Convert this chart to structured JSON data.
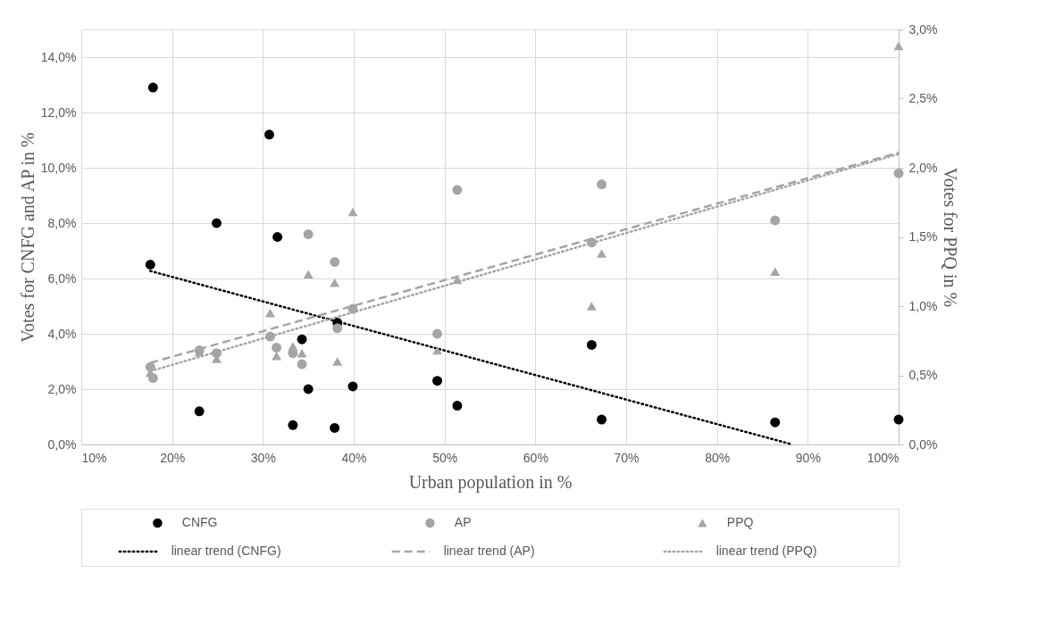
{
  "chart_data": {
    "type": "scatter",
    "xlabel": "Urban population in %",
    "ylabel": "Votes for CNFG and AP in %",
    "y2label": "Votes for PPQ in %",
    "xlim": [
      10,
      100
    ],
    "xticks": [
      {
        "value": 10,
        "label": "10%"
      },
      {
        "value": 20,
        "label": "20%"
      },
      {
        "value": 30,
        "label": "30%"
      },
      {
        "value": 40,
        "label": "40%"
      },
      {
        "value": 50,
        "label": "50%"
      },
      {
        "value": 60,
        "label": "60%"
      },
      {
        "value": 70,
        "label": "70%"
      },
      {
        "value": 80,
        "label": "80%"
      },
      {
        "value": 90,
        "label": "90%"
      },
      {
        "value": 100,
        "label": "100%"
      }
    ],
    "ylim": [
      0,
      15
    ],
    "yticks": [
      {
        "value": 0,
        "label": "0,0%"
      },
      {
        "value": 2,
        "label": "2,0%"
      },
      {
        "value": 4,
        "label": "4,0%"
      },
      {
        "value": 6,
        "label": "6,0%"
      },
      {
        "value": 8,
        "label": "8,0%"
      },
      {
        "value": 10,
        "label": "10,0%"
      },
      {
        "value": 12,
        "label": "12,0%"
      },
      {
        "value": 14,
        "label": "14,0%"
      }
    ],
    "y2lim": [
      0,
      3
    ],
    "y2ticks": [
      {
        "value": 0,
        "label": "0,0%"
      },
      {
        "value": 0.5,
        "label": "0,5%"
      },
      {
        "value": 1,
        "label": "1,0%"
      },
      {
        "value": 1.5,
        "label": "1,5%"
      },
      {
        "value": 2,
        "label": "2,0%"
      },
      {
        "value": 2.5,
        "label": "2,5%"
      },
      {
        "value": 3,
        "label": "3,0%"
      }
    ],
    "grid": true,
    "legend": "bottom",
    "series": [
      {
        "name": "CNFG",
        "marker": "circle",
        "color": "#000000",
        "x": [
          17.9,
          30.7,
          24.9,
          31.6,
          17.6,
          23.0,
          33.3,
          34.3,
          35.0,
          37.9,
          38.2,
          39.9,
          49.2,
          51.4,
          66.2,
          67.3,
          86.4,
          100
        ],
        "values": [
          12.9,
          11.2,
          8.0,
          7.5,
          6.5,
          1.2,
          0.7,
          3.8,
          2.0,
          0.6,
          4.4,
          2.1,
          2.3,
          1.4,
          3.6,
          0.9,
          0.8,
          0.9
        ]
      },
      {
        "name": "AP",
        "marker": "circle",
        "color": "#a5a5a5",
        "x": [
          17.6,
          17.9,
          23.0,
          24.9,
          30.8,
          31.5,
          33.3,
          34.3,
          35.0,
          37.9,
          38.2,
          39.9,
          49.2,
          51.4,
          66.2,
          67.3,
          86.4,
          100
        ],
        "values": [
          2.8,
          2.4,
          3.4,
          3.3,
          3.9,
          3.5,
          3.3,
          2.9,
          7.6,
          6.6,
          4.2,
          4.9,
          4.0,
          9.2,
          7.3,
          9.4,
          8.1,
          9.8
        ]
      },
      {
        "name": "PPQ",
        "marker": "triangle",
        "color": "#a5a5a5",
        "axis": "y2",
        "x": [
          17.6,
          23.0,
          24.9,
          30.8,
          31.5,
          33.3,
          34.3,
          35.0,
          37.9,
          38.2,
          39.9,
          49.2,
          51.4,
          66.2,
          67.3,
          86.4,
          100
        ],
        "values": [
          0.52,
          0.67,
          0.62,
          0.95,
          0.64,
          0.71,
          0.66,
          1.23,
          1.17,
          0.6,
          1.68,
          0.68,
          1.19,
          1.0,
          1.38,
          1.25,
          2.88
        ]
      },
      {
        "name": "linear trend (CNFG)",
        "type": "line",
        "line_style": "dotted",
        "color": "#000000",
        "x": [
          17.6,
          88.3
        ],
        "values": [
          6.27,
          0
        ]
      },
      {
        "name": "linear trend (AP)",
        "type": "line",
        "line_style": "dashed",
        "color": "#a5a5a5",
        "x": [
          17.6,
          100
        ],
        "values": [
          2.95,
          10.55
        ]
      },
      {
        "name": "linear trend (PPQ)",
        "type": "line",
        "line_style": "dotted",
        "color": "#a5a5a5",
        "axis": "y2",
        "x": [
          17.6,
          100
        ],
        "values": [
          0.53,
          2.1
        ]
      }
    ]
  }
}
